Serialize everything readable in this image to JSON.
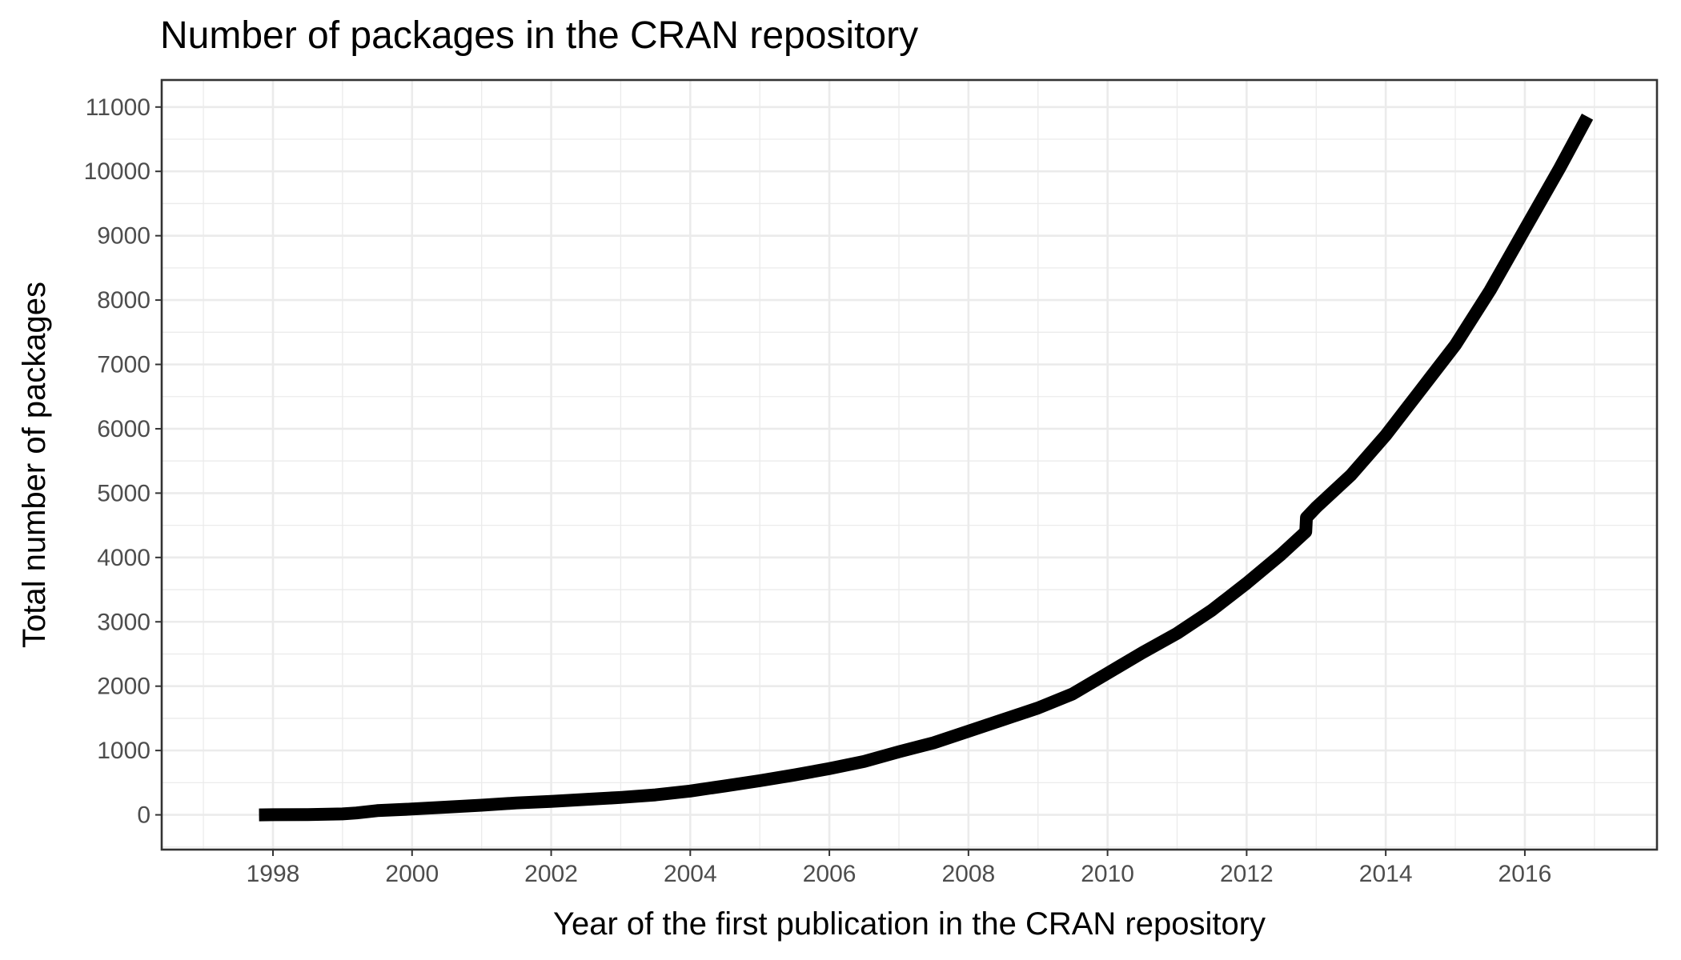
{
  "chart_data": {
    "type": "line",
    "title": "Number of packages in the CRAN repository",
    "xlabel": "Year of the first publication in the CRAN repository",
    "ylabel": "Total number of packages",
    "xlim": [
      1996.4,
      2017.9
    ],
    "ylim": [
      -540,
      11420
    ],
    "x_ticks": [
      1998,
      2000,
      2002,
      2004,
      2006,
      2008,
      2010,
      2012,
      2014,
      2016
    ],
    "y_ticks": [
      0,
      1000,
      2000,
      3000,
      4000,
      5000,
      6000,
      7000,
      8000,
      9000,
      10000,
      11000
    ],
    "grid": true,
    "legend": "none",
    "line_color": "#000000",
    "series": [
      {
        "x": [
          1997.8,
          1998.0,
          1998.5,
          1999.0,
          1999.2,
          1999.5,
          2000.0,
          2000.5,
          2001.0,
          2001.5,
          2002.0,
          2002.5,
          2003.0,
          2003.5,
          2004.0,
          2004.5,
          2005.0,
          2005.5,
          2006.0,
          2006.5,
          2007.0,
          2007.5,
          2008.0,
          2008.5,
          2009.0,
          2009.5,
          2010.0,
          2010.5,
          2011.0,
          2011.5,
          2012.0,
          2012.5,
          2012.85,
          2012.86,
          2013.0,
          2013.5,
          2014.0,
          2014.5,
          2015.0,
          2015.5,
          2016.0,
          2016.5,
          2016.9
        ],
        "y": [
          0,
          2,
          5,
          15,
          30,
          65,
          90,
          120,
          150,
          185,
          210,
          240,
          270,
          310,
          370,
          450,
          530,
          620,
          720,
          830,
          980,
          1120,
          1300,
          1480,
          1660,
          1880,
          2200,
          2520,
          2820,
          3180,
          3600,
          4050,
          4400,
          4620,
          4780,
          5280,
          5900,
          6600,
          7300,
          8150,
          9100,
          10050,
          10850
        ]
      }
    ]
  }
}
